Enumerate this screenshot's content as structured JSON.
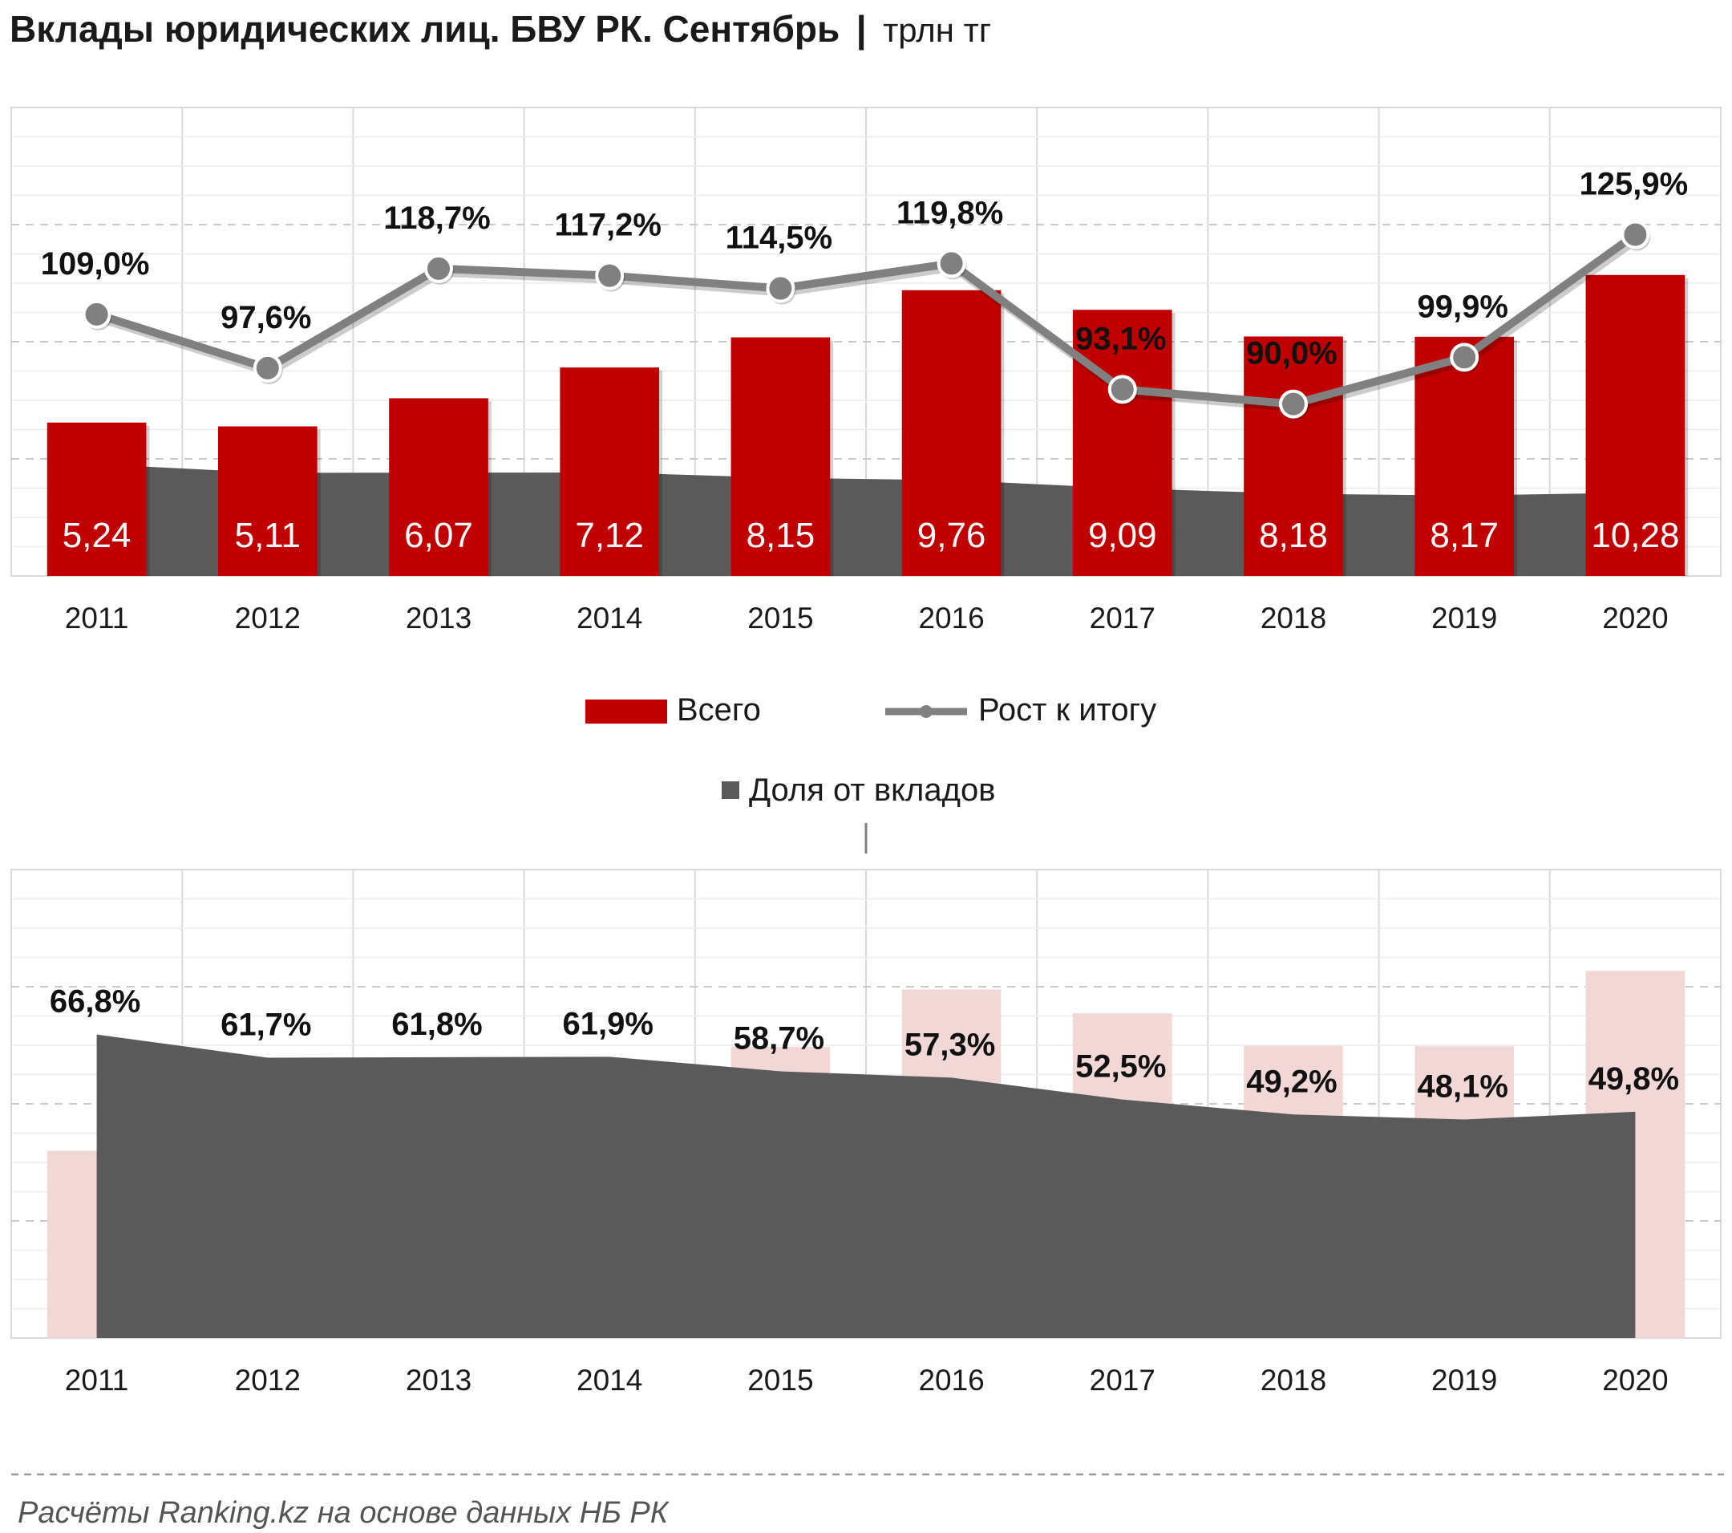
{
  "title": {
    "main": "Вклады юридических лиц. БВУ РК. Сентябрь",
    "separator": "|",
    "unit": "трлн тг"
  },
  "legend": {
    "total": "Всего",
    "growth": "Рост к итогу",
    "share": "Доля от вкладов"
  },
  "footer": "Расчёты Ranking.kz на основе данных НБ РК",
  "colors": {
    "bar": "#c00000",
    "bar_faint": "#f2d7d7",
    "area": "#5a5a5a",
    "line": "#808080",
    "grid": "#d9d9d9"
  },
  "chart_data": [
    {
      "type": "bar",
      "title": "Вклады юридических лиц. БВУ РК. Сентябрь",
      "unit": "трлн тг",
      "categories": [
        "2011",
        "2012",
        "2013",
        "2014",
        "2015",
        "2016",
        "2017",
        "2018",
        "2019",
        "2020"
      ],
      "series": [
        {
          "name": "Всего",
          "type": "bar",
          "values": [
            5.24,
            5.11,
            6.07,
            7.12,
            8.15,
            9.76,
            9.09,
            8.18,
            8.17,
            10.28
          ],
          "labels": [
            "5,24",
            "5,11",
            "6,07",
            "7,12",
            "8,15",
            "9,76",
            "9,09",
            "8,18",
            "8,17",
            "10,28"
          ]
        },
        {
          "name": "Рост к итогу",
          "type": "line",
          "values": [
            109.0,
            97.6,
            118.7,
            117.2,
            114.5,
            119.8,
            93.1,
            90.0,
            99.9,
            125.9
          ],
          "labels": [
            "109,0%",
            "97,6%",
            "118,7%",
            "117,2%",
            "114,5%",
            "119,8%",
            "93,1%",
            "90,0%",
            "99,9%",
            "125,9%"
          ]
        },
        {
          "name": "Доля от вкладов",
          "type": "area",
          "values": [
            66.8,
            61.7,
            61.8,
            61.9,
            58.7,
            57.3,
            52.5,
            49.2,
            48.1,
            49.8
          ]
        }
      ],
      "ylim": [
        0,
        16
      ]
    },
    {
      "type": "area",
      "categories": [
        "2011",
        "2012",
        "2013",
        "2014",
        "2015",
        "2016",
        "2017",
        "2018",
        "2019",
        "2020"
      ],
      "series": [
        {
          "name": "Доля от вкладов",
          "type": "area",
          "values": [
            66.8,
            61.7,
            61.8,
            61.9,
            58.7,
            57.3,
            52.5,
            49.2,
            48.1,
            49.8
          ],
          "labels": [
            "66,8%",
            "61,7%",
            "61,8%",
            "61,9%",
            "58,7%",
            "57,3%",
            "52,5%",
            "49,2%",
            "48,1%",
            "49,8%"
          ]
        },
        {
          "name": "Всего",
          "type": "bar",
          "values": [
            5.24,
            5.11,
            6.07,
            7.12,
            8.15,
            9.76,
            9.09,
            8.18,
            8.17,
            10.28
          ]
        }
      ],
      "ylim": [
        0,
        100
      ]
    }
  ]
}
